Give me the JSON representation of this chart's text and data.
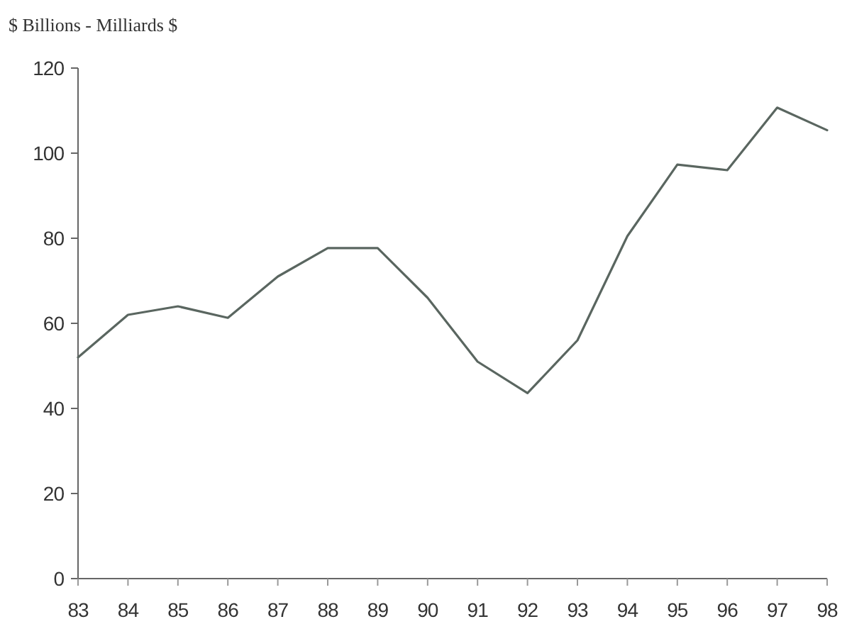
{
  "chart_data": {
    "type": "line",
    "ylabel": "$ Billions - Milliards $",
    "categories": [
      "83",
      "84",
      "85",
      "86",
      "87",
      "88",
      "89",
      "90",
      "91",
      "92",
      "93",
      "94",
      "95",
      "96",
      "97",
      "98"
    ],
    "series": [
      {
        "color": "#5a6660",
        "values": [
          52,
          62,
          64,
          61.3,
          71,
          77.7,
          77.7,
          66,
          51,
          43.6,
          56,
          80.5,
          97.3,
          96,
          110.7,
          105.4
        ]
      }
    ],
    "ylim": [
      0,
      120
    ],
    "yticks": [
      0,
      20,
      40,
      60,
      80,
      100,
      120
    ],
    "grid": false
  }
}
